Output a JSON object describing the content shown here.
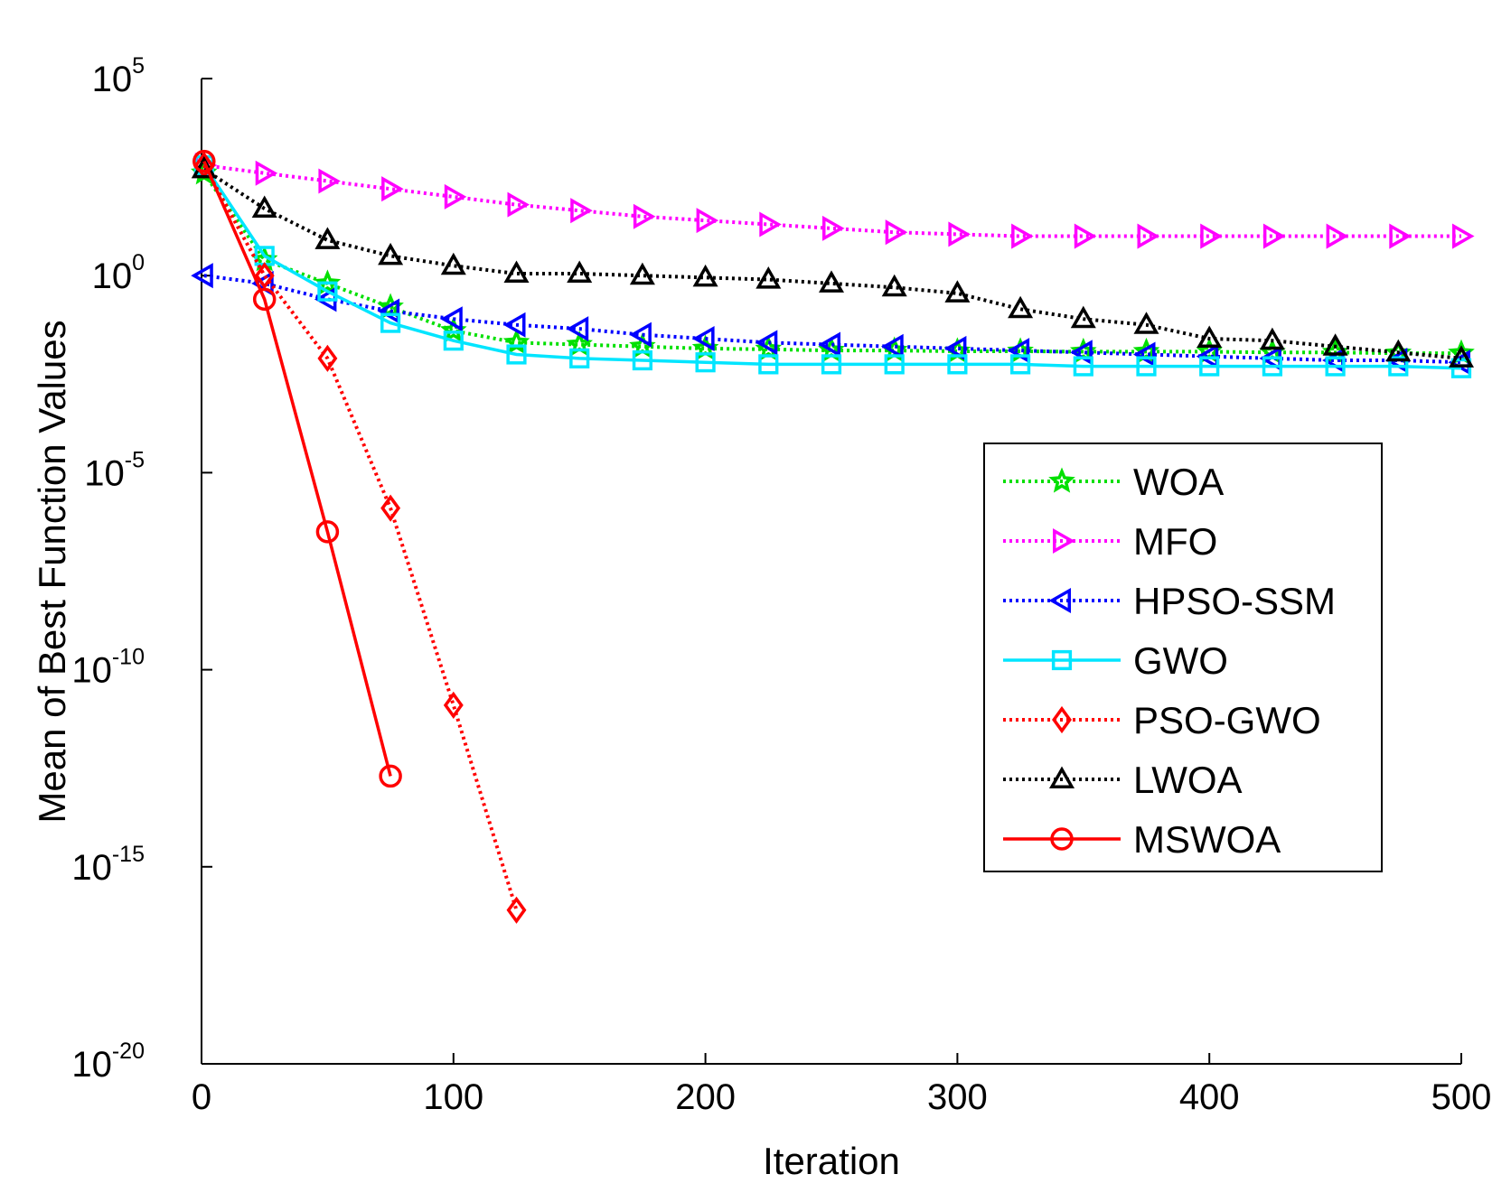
{
  "chart_data": {
    "type": "line",
    "title": "",
    "xlabel": "Iteration",
    "ylabel": "Mean of Best Function Values",
    "xlim": [
      0,
      500
    ],
    "ylog": true,
    "ylim_exponent": [
      -20,
      5
    ],
    "x_ticks": [
      {
        "value": 0,
        "label": "0"
      },
      {
        "value": 100,
        "label": "100"
      },
      {
        "value": 200,
        "label": "200"
      },
      {
        "value": 300,
        "label": "300"
      },
      {
        "value": 400,
        "label": "400"
      },
      {
        "value": 500,
        "label": "500"
      }
    ],
    "y_ticks": [
      {
        "exp": 5,
        "base": "10",
        "sup": "5"
      },
      {
        "exp": 0,
        "base": "10",
        "sup": "0"
      },
      {
        "exp": -5,
        "base": "10",
        "sup": "-5"
      },
      {
        "exp": -10,
        "base": "10",
        "sup": "-10"
      },
      {
        "exp": -15,
        "base": "10",
        "sup": "-15"
      },
      {
        "exp": -20,
        "base": "10",
        "sup": "-20"
      }
    ],
    "grid": false,
    "legend_position": "right",
    "x": [
      1,
      25,
      50,
      75,
      100,
      125,
      150,
      175,
      200,
      225,
      250,
      275,
      300,
      325,
      350,
      375,
      400,
      425,
      450,
      475,
      500
    ],
    "series": [
      {
        "name": "WOA",
        "color": "#00e000",
        "dash": "dotted",
        "marker": "star",
        "log10_values": [
          2.6,
          0.4,
          -0.2,
          -0.8,
          -1.4,
          -1.7,
          -1.75,
          -1.8,
          -1.85,
          -1.87,
          -1.9,
          -1.9,
          -1.92,
          -1.92,
          -1.93,
          -1.93,
          -1.93,
          -1.95,
          -1.95,
          -1.97,
          -1.97
        ]
      },
      {
        "name": "MFO",
        "color": "#ff00ff",
        "dash": "dotted",
        "marker": "triangle-right",
        "log10_values": [
          2.8,
          2.6,
          2.4,
          2.2,
          2.0,
          1.8,
          1.65,
          1.5,
          1.4,
          1.3,
          1.2,
          1.1,
          1.05,
          1.0,
          1.0,
          1.0,
          1.0,
          1.0,
          1.0,
          1.0,
          1.0
        ]
      },
      {
        "name": "HPSO-SSM",
        "color": "#0000ff",
        "dash": "dotted",
        "marker": "triangle-left",
        "log10_values": [
          0.0,
          -0.2,
          -0.6,
          -0.9,
          -1.1,
          -1.25,
          -1.35,
          -1.5,
          -1.6,
          -1.7,
          -1.75,
          -1.8,
          -1.85,
          -1.9,
          -1.95,
          -2.0,
          -2.05,
          -2.1,
          -2.15,
          -2.15,
          -2.2
        ]
      },
      {
        "name": "GWO",
        "color": "#00e5ff",
        "dash": "solid",
        "marker": "square",
        "log10_values": [
          2.8,
          0.5,
          -0.4,
          -1.2,
          -1.65,
          -2.0,
          -2.1,
          -2.15,
          -2.2,
          -2.25,
          -2.25,
          -2.25,
          -2.25,
          -2.25,
          -2.3,
          -2.3,
          -2.3,
          -2.3,
          -2.3,
          -2.3,
          -2.35
        ]
      },
      {
        "name": "PSO-GWO",
        "color": "#ff0000",
        "dash": "dotted",
        "marker": "diamond",
        "log10_values": [
          2.8,
          0.0,
          -2.1,
          -5.9,
          -10.9,
          -16.1
        ]
      },
      {
        "name": "LWOA",
        "color": "#000000",
        "dash": "dotted",
        "marker": "triangle-up",
        "log10_values": [
          2.7,
          1.7,
          0.9,
          0.5,
          0.25,
          0.05,
          0.05,
          0.0,
          -0.05,
          -0.1,
          -0.2,
          -0.3,
          -0.45,
          -0.85,
          -1.1,
          -1.25,
          -1.6,
          -1.65,
          -1.8,
          -1.95,
          -2.1
        ]
      },
      {
        "name": "MSWOA",
        "color": "#ff0000",
        "dash": "solid",
        "marker": "circle",
        "log10_values": [
          2.9,
          -0.6,
          -6.5,
          -12.7
        ]
      }
    ]
  }
}
